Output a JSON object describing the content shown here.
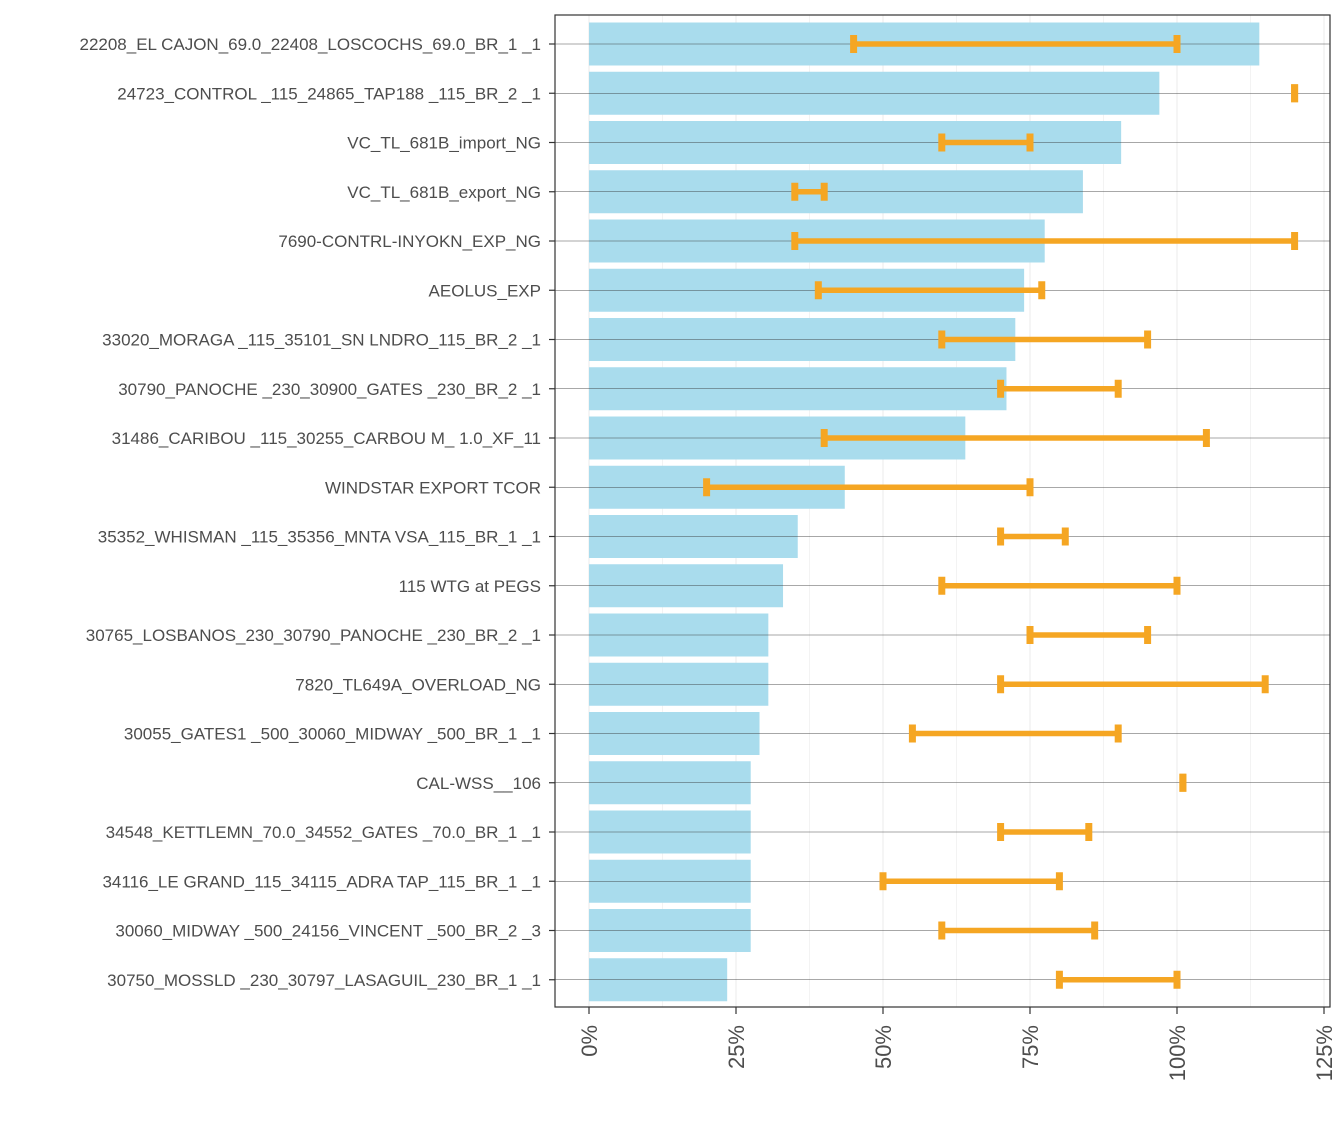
{
  "chart_data": {
    "type": "bar",
    "orientation": "horizontal",
    "title": "",
    "xlabel": "",
    "ylabel": "",
    "xlim": [
      0,
      125
    ],
    "x_tick_values": [
      0,
      25,
      50,
      75,
      100,
      125
    ],
    "x_tick_labels": [
      "0%",
      "25%",
      "50%",
      "75%",
      "100%",
      "125%"
    ],
    "grid": true,
    "legend": "none",
    "colors": {
      "bar": "#a9dced",
      "range": "#f5a623",
      "gridline": "#ebebeb",
      "axis": "#333333"
    },
    "categories": [
      "22208_EL CAJON_69.0_22408_LOSCOCHS_69.0_BR_1 _1",
      "24723_CONTROL _115_24865_TAP188  _115_BR_2 _1",
      "VC_TL_681B_import_NG",
      "VC_TL_681B_export_NG",
      "7690-CONTRL-INYOKN_EXP_NG",
      "AEOLUS_EXP",
      "33020_MORAGA  _115_35101_SN LNDRO_115_BR_2 _1",
      "30790_PANOCHE _230_30900_GATES   _230_BR_2 _1",
      "31486_CARIBOU _115_30255_CARBOU M_ 1.0_XF_11",
      "WINDSTAR EXPORT TCOR",
      "35352_WHISMAN _115_35356_MNTA VSA_115_BR_1 _1",
      "115 WTG at PEGS",
      "30765_LOSBANOS_230_30790_PANOCHE _230_BR_2 _1",
      "7820_TL649A_OVERLOAD_NG",
      "30055_GATES1  _500_30060_MIDWAY  _500_BR_1 _1",
      "CAL-WSS__106",
      "34548_KETTLEMN_70.0_34552_GATES   _70.0_BR_1 _1",
      "34116_LE GRAND_115_34115_ADRA TAP_115_BR_1 _1",
      "30060_MIDWAY  _500_24156_VINCENT _500_BR_2 _3",
      "30750_MOSSLD  _230_30797_LASAGUIL_230_BR_1 _1"
    ],
    "series": [
      {
        "values": [
          114,
          97,
          90.5,
          84,
          77.5,
          74,
          72.5,
          71,
          64,
          43.5,
          35.5,
          33,
          30.5,
          30.5,
          29,
          27.5,
          27.5,
          27.5,
          27.5,
          23.5
        ]
      },
      {
        "low": [
          45,
          120,
          60,
          35,
          35,
          39,
          60,
          70,
          40,
          20,
          70,
          60,
          75,
          70,
          55,
          101,
          70,
          50,
          60,
          80
        ],
        "high": [
          100,
          120,
          75,
          40,
          120,
          77,
          95,
          90,
          105,
          75,
          81,
          100,
          95,
          115,
          90,
          101,
          85,
          80,
          86,
          100
        ]
      }
    ]
  }
}
